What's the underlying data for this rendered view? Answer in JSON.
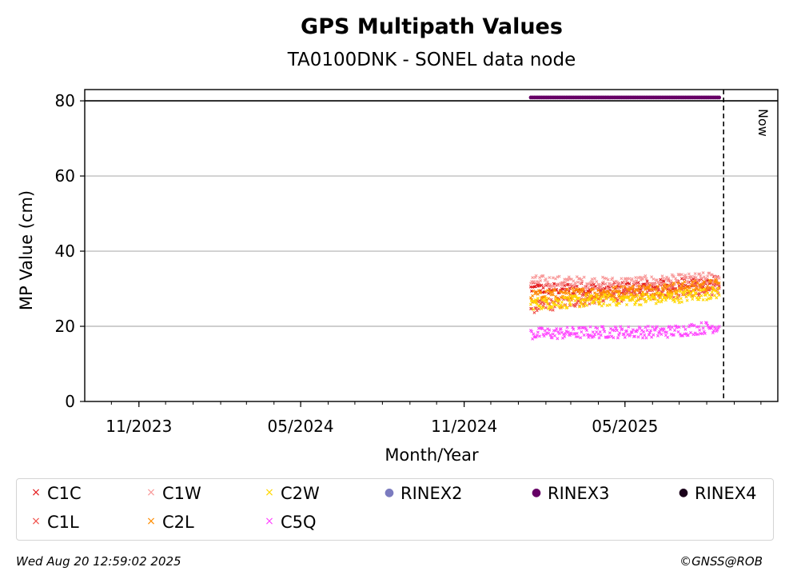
{
  "chart_data": {
    "type": "scatter",
    "title": "GPS Multipath Values",
    "subtitle": "TA0100DNK - SONEL data node",
    "xlabel": "Month/Year",
    "ylabel": "MP Value (cm)",
    "x_range": [
      "2023-09-01",
      "2025-10-20"
    ],
    "ylim": [
      0,
      80
    ],
    "yticks": [
      0,
      20,
      40,
      60,
      80
    ],
    "xticks": [
      {
        "date": "2023-11-01",
        "label": "11/2023"
      },
      {
        "date": "2024-05-01",
        "label": "05/2024"
      },
      {
        "date": "2024-11-01",
        "label": "11/2024"
      },
      {
        "date": "2025-05-01",
        "label": "05/2025"
      }
    ],
    "grid": "horizontal",
    "now_line": {
      "date": "2025-08-20",
      "label": "Now"
    },
    "data_start": "2025-01-15",
    "series": [
      {
        "name": "C1C",
        "color": "#e41a1c",
        "marker": "x",
        "daily_mean_segments": [
          [
            "2025-01-15",
            30
          ],
          [
            "2025-04-15",
            30
          ],
          [
            "2025-06-15",
            31
          ],
          [
            "2025-08-15",
            32
          ]
        ]
      },
      {
        "name": "C1L",
        "color": "#f0504a",
        "marker": "x",
        "daily_mean_segments": [
          [
            "2025-01-15",
            25
          ],
          [
            "2025-04-15",
            28
          ],
          [
            "2025-06-15",
            29
          ],
          [
            "2025-08-15",
            30
          ]
        ]
      },
      {
        "name": "C1W",
        "color": "#f89898",
        "marker": "x",
        "daily_mean_segments": [
          [
            "2025-01-15",
            32
          ],
          [
            "2025-04-15",
            31.5
          ],
          [
            "2025-06-15",
            32
          ],
          [
            "2025-08-15",
            33
          ]
        ]
      },
      {
        "name": "C2L",
        "color": "#ff8c00",
        "marker": "x",
        "daily_mean_segments": [
          [
            "2025-01-15",
            28
          ],
          [
            "2025-04-15",
            29
          ],
          [
            "2025-06-15",
            30
          ],
          [
            "2025-08-15",
            31
          ]
        ]
      },
      {
        "name": "C2W",
        "color": "#ffd700",
        "marker": "x",
        "daily_mean_segments": [
          [
            "2025-01-15",
            26
          ],
          [
            "2025-04-15",
            27
          ],
          [
            "2025-06-15",
            27.5
          ],
          [
            "2025-08-15",
            29
          ]
        ]
      },
      {
        "name": "C5Q",
        "color": "#ff44ff",
        "marker": "x",
        "daily_mean_segments": [
          [
            "2025-01-15",
            18
          ],
          [
            "2025-04-15",
            18.5
          ],
          [
            "2025-06-15",
            18.5
          ],
          [
            "2025-08-15",
            20
          ]
        ]
      },
      {
        "name": "RINEX2",
        "color": "#7b7bbf",
        "marker": "dot",
        "points": []
      },
      {
        "name": "RINEX3",
        "color": "#660066",
        "marker": "dot",
        "y": 81,
        "range": [
          "2025-01-15",
          "2025-08-15"
        ]
      },
      {
        "name": "RINEX4",
        "color": "#1a001a",
        "marker": "dot",
        "points": []
      }
    ]
  },
  "legend": {
    "items": [
      {
        "name": "C1C",
        "color": "#e41a1c",
        "marker": "×"
      },
      {
        "name": "C1W",
        "color": "#f89898",
        "marker": "×"
      },
      {
        "name": "C2W",
        "color": "#ffd700",
        "marker": "×"
      },
      {
        "name": "RINEX2",
        "color": "#7b7bbf",
        "marker": "●"
      },
      {
        "name": "RINEX3",
        "color": "#660066",
        "marker": "●"
      },
      {
        "name": "RINEX4",
        "color": "#1a001a",
        "marker": "●"
      },
      {
        "name": "C1L",
        "color": "#f0504a",
        "marker": "×"
      },
      {
        "name": "C2L",
        "color": "#ff8c00",
        "marker": "×"
      },
      {
        "name": "C5Q",
        "color": "#ff44ff",
        "marker": "×"
      }
    ]
  },
  "footer": {
    "timestamp": "Wed Aug 20 12:59:02 2025",
    "copyright": "©GNSS@ROB"
  }
}
